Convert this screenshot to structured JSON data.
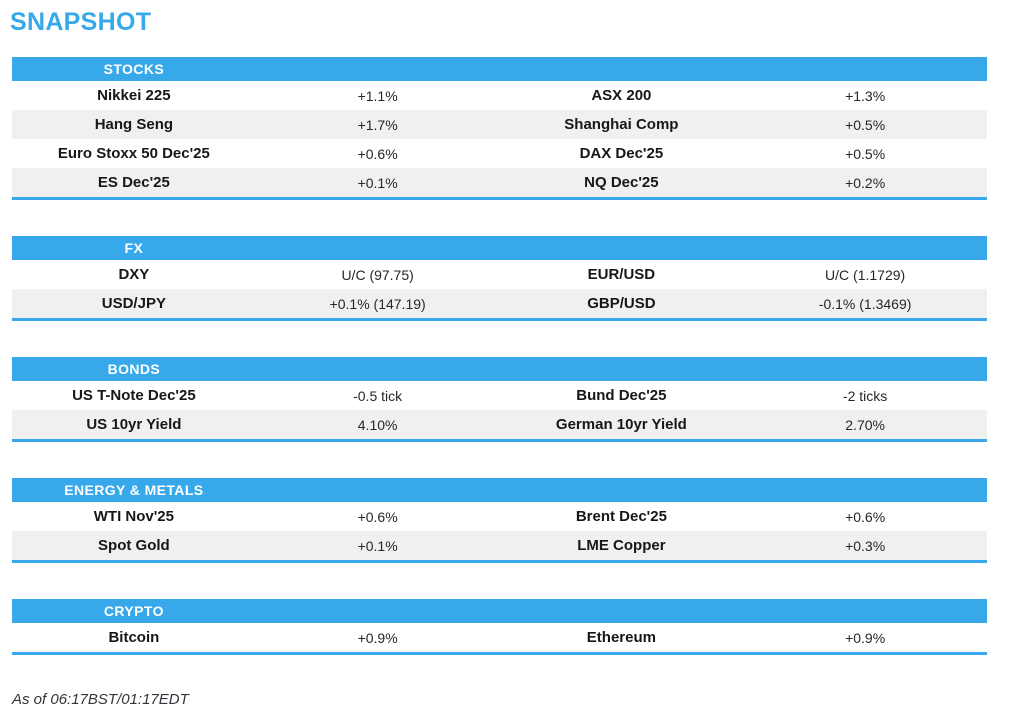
{
  "page": {
    "title": "SNAPSHOT",
    "footer": "As of 06:17BST/01:17EDT"
  },
  "colors": {
    "accent": "#37a9ea",
    "row_alt": "#f0f0f1",
    "header_text": "#ffffff",
    "name_text": "#17171a",
    "value_text": "#26262b"
  },
  "tables": [
    {
      "header": "STOCKS",
      "rows": [
        [
          "Nikkei 225",
          "+1.1%",
          "ASX 200",
          "+1.3%"
        ],
        [
          "Hang Seng",
          "+1.7%",
          "Shanghai Comp",
          "+0.5%"
        ],
        [
          "Euro Stoxx 50 Dec'25",
          "+0.6%",
          "DAX Dec'25",
          "+0.5%"
        ],
        [
          "ES Dec'25",
          "+0.1%",
          "NQ Dec'25",
          "+0.2%"
        ]
      ]
    },
    {
      "header": "FX",
      "rows": [
        [
          "DXY",
          "U/C (97.75)",
          "EUR/USD",
          "U/C (1.1729)"
        ],
        [
          "USD/JPY",
          "+0.1% (147.19)",
          "GBP/USD",
          "-0.1% (1.3469)"
        ]
      ]
    },
    {
      "header": "BONDS",
      "rows": [
        [
          "US T-Note Dec'25",
          "-0.5 tick",
          "Bund Dec'25",
          "-2 ticks"
        ],
        [
          "US 10yr Yield",
          "4.10%",
          "German 10yr Yield",
          "2.70%"
        ]
      ]
    },
    {
      "header": "ENERGY & METALS",
      "rows": [
        [
          "WTI Nov'25",
          "+0.6%",
          "Brent Dec'25",
          "+0.6%"
        ],
        [
          "Spot Gold",
          "+0.1%",
          "LME Copper",
          "+0.3%"
        ]
      ]
    },
    {
      "header": "CRYPTO",
      "rows": [
        [
          "Bitcoin",
          "+0.9%",
          "Ethereum",
          "+0.9%"
        ]
      ]
    }
  ]
}
